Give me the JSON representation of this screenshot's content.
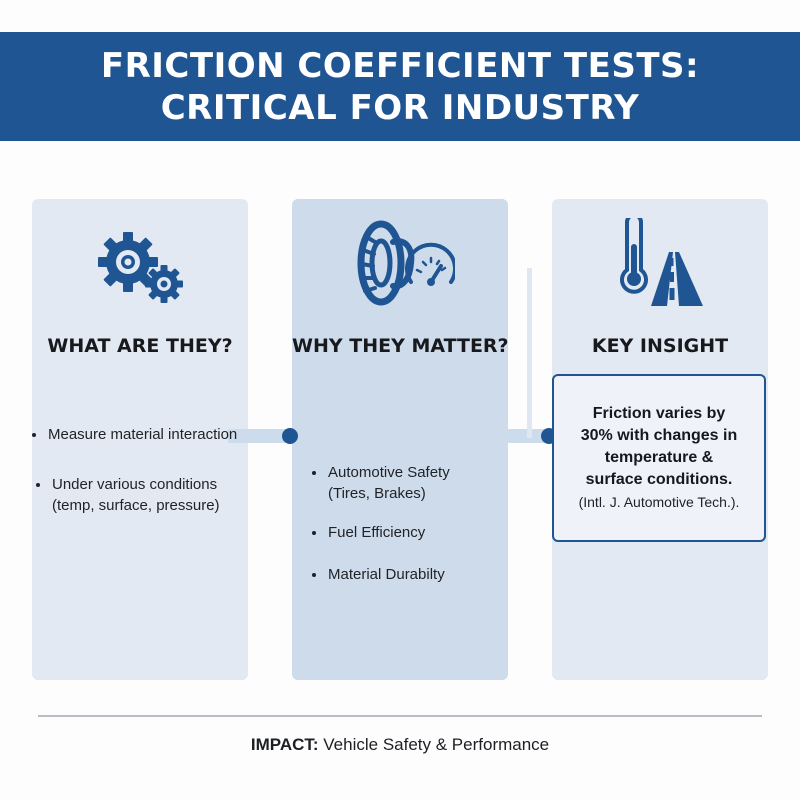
{
  "title": {
    "line1": "FRICTION COEFFICIENT TESTS:",
    "line2": "CRITICAL FOR INDUSTRY"
  },
  "columns": [
    {
      "heading": "WHAT ARE THEY?",
      "icon": "gears-icon",
      "bullets": [
        [
          "Measure material interaction"
        ],
        [
          "Under various conditions",
          "(temp, surface, pressure)"
        ]
      ]
    },
    {
      "heading": "WHY THEY MATTER?",
      "icon": "tire-gauge-icon",
      "bullets": [
        [
          "Automotive Safety",
          "(Tires, Brakes)"
        ],
        [
          "Fuel Efficiency"
        ],
        [
          "Material Durabilty"
        ]
      ]
    },
    {
      "heading": "KEY INSIGHT",
      "icon": "thermometer-road-icon",
      "insight": {
        "lines": [
          "Friction varies by",
          "30% with changes in",
          "temperature &",
          "surface conditions."
        ],
        "source": "(Intl. J. Automotive Tech.)."
      }
    }
  ],
  "footer": {
    "impact_label": "IMPACT:",
    "impact_text": " Vehicle Safety & Performance"
  },
  "colors": {
    "brand_blue": "#1f5592",
    "panel_light": "#e3e9f2",
    "panel_mid": "#cedbeb",
    "connector": "#cddcec"
  }
}
